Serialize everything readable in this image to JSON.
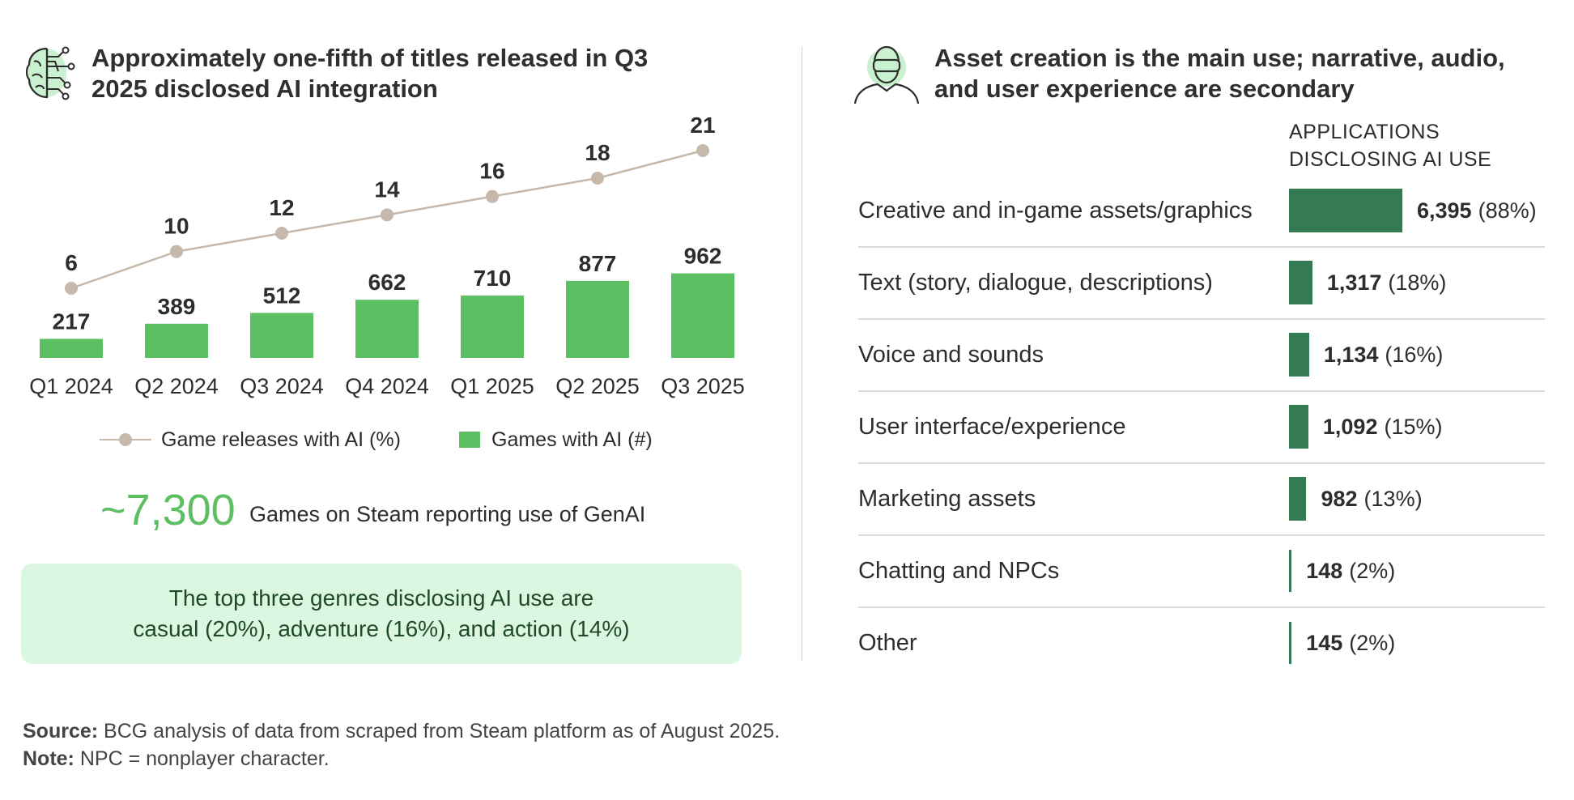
{
  "left_panel": {
    "title": "Approximately one-fifth of titles released in Q3 2025 disclosed AI integration",
    "icon": "brain-circuit-icon"
  },
  "chart_data": [
    {
      "type": "bar+line",
      "categories": [
        "Q1 2024",
        "Q2 2024",
        "Q3 2024",
        "Q4 2024",
        "Q1 2025",
        "Q2 2025",
        "Q3 2025"
      ],
      "series": [
        {
          "name": "Games with AI (#)",
          "kind": "bar",
          "values": [
            217,
            389,
            512,
            662,
            710,
            877,
            962
          ],
          "color": "#5cc063"
        },
        {
          "name": "Game releases with AI (%)",
          "kind": "line",
          "values": [
            6,
            10,
            12,
            14,
            16,
            18,
            21
          ],
          "color": "#c6b8ab"
        }
      ],
      "ylim_bar": [
        0,
        1250
      ],
      "ylim_line": [
        0,
        26
      ],
      "legend": [
        "Game releases with AI (%)",
        "Games with AI (#)"
      ],
      "legend_position": "bottom"
    },
    {
      "type": "bar",
      "orientation": "horizontal",
      "title": "Asset creation is the main use; narrative, audio, and user experience are secondary",
      "header": "APPLICATIONS DISCLOSING AI USE",
      "categories": [
        "Creative and in-game assets/graphics",
        "Text (story, dialogue, descriptions)",
        "Voice and sounds",
        "User interface/experience",
        "Marketing assets",
        "Chatting and NPCs",
        "Other"
      ],
      "values": [
        6395,
        1317,
        1134,
        1092,
        982,
        148,
        145
      ],
      "value_labels": [
        "6,395",
        "1,317",
        "1,134",
        "1,092",
        "982",
        "148",
        "145"
      ],
      "percent_labels": [
        "(88%)",
        "(18%)",
        "(16%)",
        "(15%)",
        "(13%)",
        "(2%)",
        "(2%)"
      ],
      "color": "#347a53"
    }
  ],
  "stat": {
    "value": "~7,300",
    "text": "Games on Steam reporting use of GenAI"
  },
  "genre_box": {
    "line1": "The top three genres disclosing AI use are",
    "line2": "casual (20%), adventure (16%), and action (14%)"
  },
  "right_panel": {
    "title": "Asset creation is the main use; narrative, audio, and user experience are secondary",
    "icon": "vr-headset-person-icon",
    "header_line1": "APPLICATIONS",
    "header_line2": "DISCLOSING AI USE"
  },
  "footer": {
    "source_label": "Source:",
    "source_text": "BCG analysis of data from scraped from Steam platform as of August 2025.",
    "note_label": "Note:",
    "note_text": "NPC = nonplayer character."
  },
  "colors": {
    "bar_green": "#5cc063",
    "line_tan": "#c6b8ab",
    "hbar_green": "#347a53",
    "box_bg": "#dcf7e1"
  }
}
